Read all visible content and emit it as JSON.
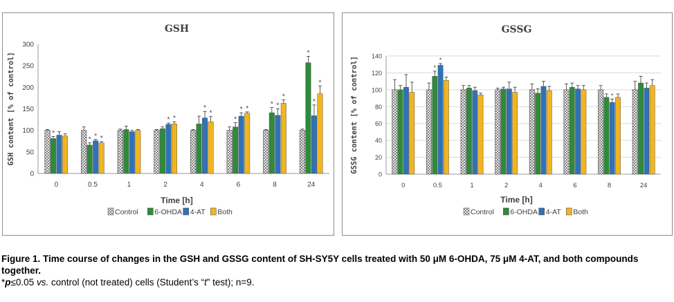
{
  "chart_data": [
    {
      "type": "bar",
      "title": "GSH",
      "xlabel": "Time [h]",
      "ylabel": "GSH content [% of control]",
      "ylim": [
        0,
        300
      ],
      "yticks": [
        "0",
        "50",
        "100",
        "150",
        "200",
        "250",
        "300"
      ],
      "categories": [
        "0",
        "0.5",
        "1",
        "2",
        "4",
        "6",
        "8",
        "24"
      ],
      "grid": false,
      "legend_position": "bottom",
      "series": [
        {
          "name": "Control",
          "values": [
            100,
            100,
            100,
            100,
            100,
            100,
            100,
            100
          ],
          "err": [
            2,
            8,
            3,
            2,
            2,
            8,
            2,
            3
          ],
          "sig": [
            false,
            false,
            false,
            false,
            false,
            false,
            false,
            false
          ]
        },
        {
          "name": "6-OHDA",
          "values": [
            81,
            66,
            102,
            104,
            115,
            108,
            141,
            257
          ],
          "err": [
            5,
            5,
            8,
            4,
            18,
            10,
            12,
            15
          ],
          "sig": [
            true,
            true,
            false,
            false,
            false,
            true,
            true,
            true
          ]
        },
        {
          "name": "4-AT",
          "values": [
            89,
            76,
            97,
            114,
            129,
            133,
            135,
            134
          ],
          "err": [
            8,
            3,
            3,
            3,
            15,
            8,
            15,
            25
          ],
          "sig": [
            false,
            true,
            false,
            true,
            true,
            true,
            true,
            true
          ]
        },
        {
          "name": "Both",
          "values": [
            87,
            71,
            100,
            115,
            120,
            140,
            163,
            185
          ],
          "err": [
            5,
            3,
            2,
            5,
            12,
            3,
            8,
            18
          ],
          "sig": [
            false,
            true,
            false,
            true,
            true,
            true,
            true,
            true
          ]
        }
      ]
    },
    {
      "type": "bar",
      "title": "GSSG",
      "xlabel": "Time [h]",
      "ylabel": "GSSG content [% of control]",
      "ylim": [
        0,
        140
      ],
      "yticks": [
        "0",
        "20",
        "40",
        "60",
        "80",
        "100",
        "120",
        "140"
      ],
      "categories": [
        "0",
        "0.5",
        "1",
        "2",
        "4",
        "6",
        "8",
        "24"
      ],
      "grid": true,
      "legend_position": "bottom",
      "series": [
        {
          "name": "Control",
          "values": [
            100,
            100,
            100,
            100,
            100,
            100,
            100,
            100
          ],
          "err": [
            12,
            8,
            5,
            2,
            7,
            7,
            5,
            10
          ],
          "sig": [
            false,
            false,
            false,
            false,
            false,
            false,
            false,
            false
          ]
        },
        {
          "name": "6-OHDA",
          "values": [
            100,
            116,
            102,
            101,
            96,
            103,
            91,
            108
          ],
          "err": [
            5,
            6,
            3,
            2,
            5,
            5,
            4,
            8
          ],
          "sig": [
            false,
            true,
            false,
            false,
            false,
            false,
            false,
            false
          ]
        },
        {
          "name": "4-AT",
          "values": [
            103,
            129,
            99,
            101,
            104,
            101,
            85,
            102
          ],
          "err": [
            15,
            2,
            4,
            8,
            6,
            4,
            4,
            6
          ],
          "sig": [
            false,
            true,
            false,
            false,
            false,
            false,
            true,
            false
          ]
        },
        {
          "name": "Both",
          "values": [
            97,
            111,
            94,
            97,
            99,
            100,
            91,
            105
          ],
          "err": [
            12,
            4,
            2,
            6,
            5,
            5,
            4,
            7
          ],
          "sig": [
            false,
            false,
            false,
            false,
            false,
            false,
            false,
            false
          ]
        }
      ]
    }
  ],
  "colors": {
    "control": "#ffffff",
    "ohda": "#2e8b3a",
    "at4": "#2f73b6",
    "both": "#f2b51f"
  },
  "sig_marker": "*",
  "caption": {
    "title": "Figure 1. Time course of changes in the GSH and GSSG content of SH-SY5Y cells treated with 50 μM 6-OHDA, 75 μM 4-AT, and both compounds together.",
    "note_sym": "*",
    "note_p": "p",
    "note_a": "≤0.05 ",
    "note_vs": "vs.",
    "note_b": " control (not treated) cells (Student’s “",
    "note_t": "t",
    "note_c": "” test); n=9."
  }
}
